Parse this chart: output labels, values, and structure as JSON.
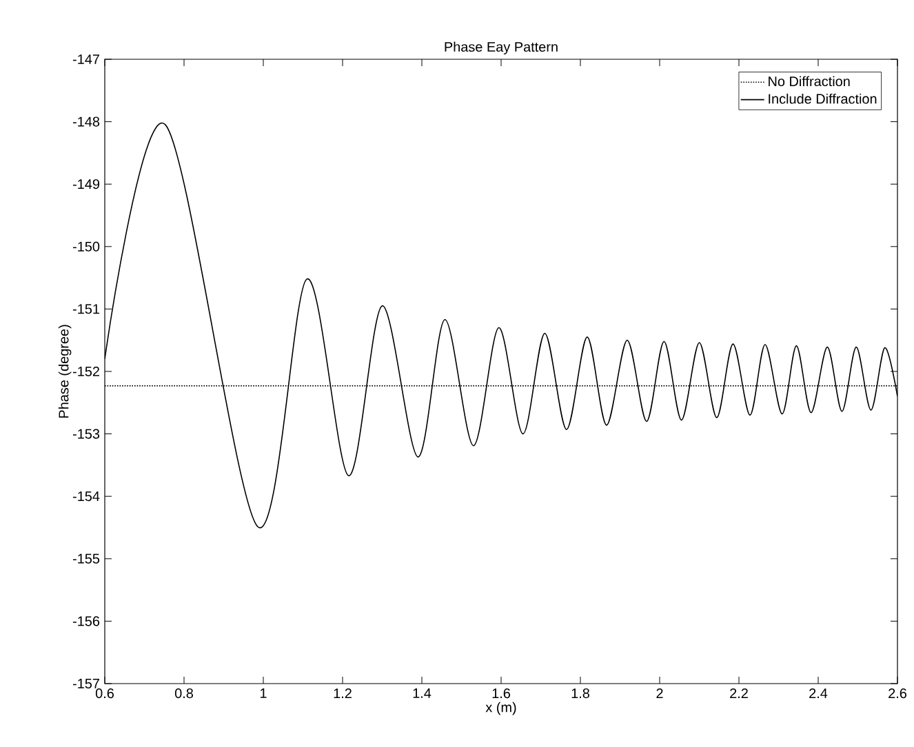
{
  "chart_data": {
    "type": "line",
    "title": "Phase Eay Pattern",
    "xlabel": "x (m)",
    "ylabel": "Phase (degree)",
    "xlim": [
      0.6,
      2.6
    ],
    "xticks": [
      0.6,
      0.8,
      1,
      1.2,
      1.4,
      1.6,
      1.8,
      2,
      2.2,
      2.4,
      2.6
    ],
    "ylim": [
      -157,
      -147
    ],
    "yticks": [
      -157,
      -156,
      -155,
      -154,
      -153,
      -152,
      -151,
      -150,
      -149,
      -148,
      -147
    ],
    "grid": false,
    "legend": "top right",
    "marker": "none",
    "series": [
      {
        "name": "No Diffraction",
        "color": "#000000",
        "line_style": "dotted",
        "x": [
          0.6,
          2.6
        ],
        "values": [
          -152.23,
          -152.23
        ]
      },
      {
        "name": "Include Diffraction",
        "color": "#000000",
        "line_style": "solid",
        "x": [
          0.6,
          0.753,
          0.985,
          1.11,
          1.215,
          1.3,
          1.39,
          1.458,
          1.53,
          1.594,
          1.655,
          1.71,
          1.765,
          1.817,
          1.866,
          1.918,
          1.967,
          2.011,
          2.055,
          2.1,
          2.144,
          2.185,
          2.228,
          2.266,
          2.309,
          2.345,
          2.382,
          2.423,
          2.46,
          2.496,
          2.533,
          2.568,
          2.6
        ],
        "values": [
          -151.8,
          -148.05,
          -154.48,
          -150.52,
          -153.67,
          -150.95,
          -153.37,
          -151.17,
          -153.19,
          -151.3,
          -153.0,
          -151.39,
          -152.93,
          -151.45,
          -152.86,
          -151.5,
          -152.8,
          -151.52,
          -152.78,
          -151.54,
          -152.74,
          -151.56,
          -152.7,
          -151.57,
          -152.68,
          -151.59,
          -152.66,
          -151.61,
          -152.64,
          -151.61,
          -152.62,
          -151.62,
          -152.4
        ]
      }
    ]
  }
}
